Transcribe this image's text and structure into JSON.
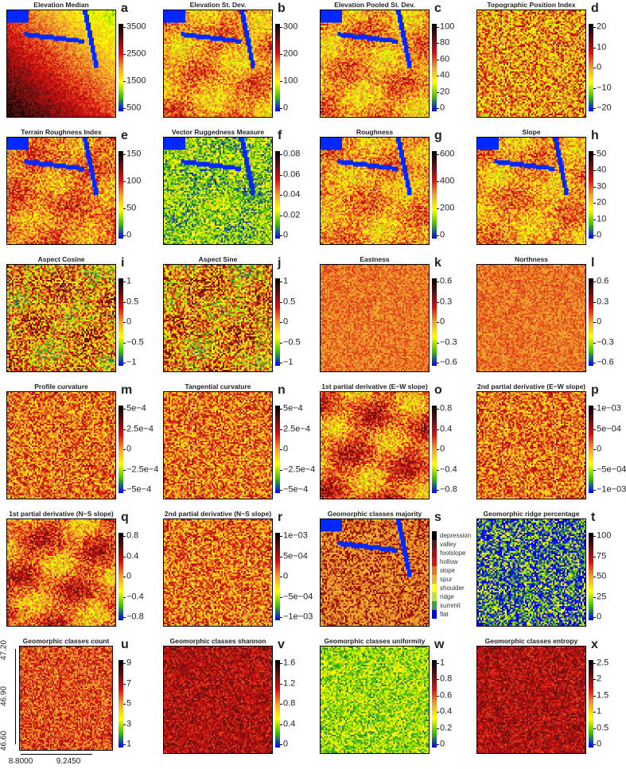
{
  "panels": [
    {
      "letter": "a",
      "title": "Elevation Median",
      "ticks": [
        "500",
        "1500",
        "2500",
        "3500"
      ]
    },
    {
      "letter": "b",
      "title": "Elevation St. Dev.",
      "ticks": [
        "0",
        "100",
        "200",
        "300"
      ]
    },
    {
      "letter": "c",
      "title": "Elevation Pooled St. Dev.",
      "ticks": [
        "0",
        "20",
        "40",
        "60",
        "80",
        "100"
      ]
    },
    {
      "letter": "d",
      "title": "Topographic Position Index",
      "ticks": [
        "−20",
        "−10",
        "0",
        "10",
        "20"
      ]
    },
    {
      "letter": "e",
      "title": "Terrain Roughness Index",
      "ticks": [
        "0",
        "50",
        "100",
        "150"
      ]
    },
    {
      "letter": "f",
      "title": "Vector Ruggedness Measure",
      "ticks": [
        "0",
        "0.02",
        "0.04",
        "0.06",
        "0.08"
      ]
    },
    {
      "letter": "g",
      "title": "Roughness",
      "ticks": [
        "0",
        "200",
        "400",
        "600"
      ]
    },
    {
      "letter": "h",
      "title": "Slope",
      "ticks": [
        "0",
        "10",
        "20",
        "30",
        "40",
        "50"
      ]
    },
    {
      "letter": "i",
      "title": "Aspect Cosine",
      "ticks": [
        "−1",
        "−0.5",
        "0",
        "0.5",
        "1"
      ]
    },
    {
      "letter": "j",
      "title": "Aspect Sine",
      "ticks": [
        "−1",
        "−0.5",
        "0",
        "0.5",
        "1"
      ]
    },
    {
      "letter": "k",
      "title": "Eastness",
      "ticks": [
        "−0.6",
        "−0.3",
        "0",
        "0.3",
        "0.6"
      ]
    },
    {
      "letter": "l",
      "title": "Northness",
      "ticks": [
        "−0.6",
        "−0.3",
        "0",
        "0.3",
        "0.6"
      ]
    },
    {
      "letter": "m",
      "title": "Profile curvature",
      "ticks": [
        "−5e−4",
        "−2.5e−4",
        "0",
        "2.5e−4",
        "5e−4"
      ]
    },
    {
      "letter": "n",
      "title": "Tangential curvature",
      "ticks": [
        "−5e−4",
        "−2.5e−4",
        "0",
        "2.5e−4",
        "5e−4"
      ]
    },
    {
      "letter": "o",
      "title": "1st partial derivative (E−W slope)",
      "ticks": [
        "−0.8",
        "−0.4",
        "0",
        "0.4",
        "0.8"
      ]
    },
    {
      "letter": "p",
      "title": "2nd partial derivative (E−W slope)",
      "ticks": [
        "−1e−03",
        "−5e−04",
        "0",
        "5e−04",
        "1e−03"
      ]
    },
    {
      "letter": "q",
      "title": "1st partial derivative (N−S slope)",
      "ticks": [
        "−0.8",
        "−0.4",
        "0",
        "0.4",
        "0.8"
      ]
    },
    {
      "letter": "r",
      "title": "2nd partial derivative (N−S slope)",
      "ticks": [
        "−1e−03",
        "−5e−04",
        "0",
        "5e−04",
        "1e−03"
      ]
    },
    {
      "letter": "s",
      "title": "Geomorphic classes majority",
      "legend": [
        "depression",
        "valley",
        "footslope",
        "hollow",
        "slope",
        "spur",
        "shoulder",
        "ridge",
        "summit",
        "flat"
      ]
    },
    {
      "letter": "t",
      "title": "Geomorphic ridge percentage",
      "ticks": [
        "0",
        "25",
        "50",
        "75",
        "100"
      ]
    },
    {
      "letter": "u",
      "title": "Geomorphic classes count",
      "ticks": [
        "1",
        "3",
        "5",
        "7",
        "9"
      ]
    },
    {
      "letter": "v",
      "title": "Geomorphic classes shannon",
      "ticks": [
        "0",
        "0.4",
        "0.8",
        "1.2",
        "1.6"
      ]
    },
    {
      "letter": "w",
      "title": "Geomorphic classes uniformity",
      "ticks": [
        "0",
        "0.2",
        "0.4",
        "0.6",
        "0.8",
        "1"
      ]
    },
    {
      "letter": "x",
      "title": "Geomorphic classes entropy",
      "ticks": [
        "0",
        "0.5",
        "1",
        "1.5",
        "2",
        "2.5"
      ]
    }
  ],
  "axes": {
    "y_ticks": [
      "46.60",
      "46.90",
      "47.20"
    ],
    "x_ticks": [
      "8.8000",
      "9.2450"
    ]
  },
  "palette": [
    "#0000ff",
    "#40c000",
    "#ffff00",
    "#f0a030",
    "#d81010",
    "#601010",
    "#000000"
  ],
  "class_colors": [
    "#000000",
    "#5a1a1a",
    "#a01010",
    "#e01010",
    "#e07a20",
    "#f0b030",
    "#ffff20",
    "#c0e040",
    "#40a040",
    "#0000ff"
  ]
}
